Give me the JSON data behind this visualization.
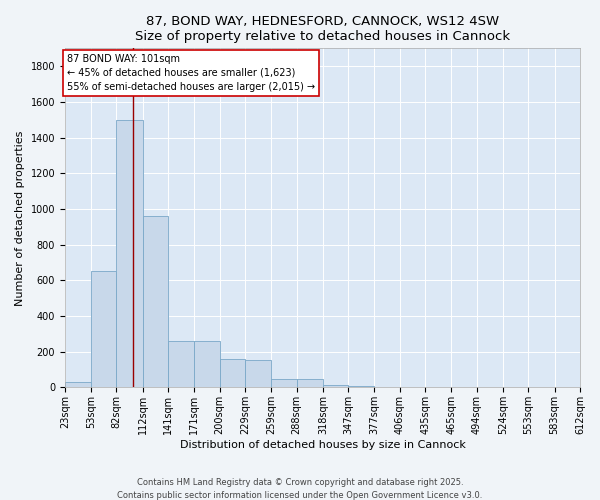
{
  "title_line1": "87, BOND WAY, HEDNESFORD, CANNOCK, WS12 4SW",
  "title_line2": "Size of property relative to detached houses in Cannock",
  "xlabel": "Distribution of detached houses by size in Cannock",
  "ylabel": "Number of detached properties",
  "bins": [
    23,
    53,
    82,
    112,
    141,
    171,
    200,
    229,
    259,
    288,
    318,
    347,
    377,
    406,
    435,
    465,
    494,
    524,
    553,
    583,
    612
  ],
  "bin_labels": [
    "23sqm",
    "53sqm",
    "82sqm",
    "112sqm",
    "141sqm",
    "171sqm",
    "200sqm",
    "229sqm",
    "259sqm",
    "288sqm",
    "318sqm",
    "347sqm",
    "377sqm",
    "406sqm",
    "435sqm",
    "465sqm",
    "494sqm",
    "524sqm",
    "553sqm",
    "583sqm",
    "612sqm"
  ],
  "counts": [
    30,
    650,
    1500,
    960,
    260,
    260,
    160,
    155,
    50,
    50,
    15,
    10,
    5,
    5,
    5,
    5,
    5,
    5,
    5,
    5
  ],
  "bar_color": "#c8d8ea",
  "bar_edge_color": "#7aa8c8",
  "background_color": "#dce8f5",
  "fig_background_color": "#f0f4f8",
  "vertical_line_x": 101,
  "vertical_line_color": "#990000",
  "annotation_box_edge_color": "#cc0000",
  "annotation_line1": "87 BOND WAY: 101sqm",
  "annotation_line2": "← 45% of detached houses are smaller (1,623)",
  "annotation_line3": "55% of semi-detached houses are larger (2,015) →",
  "ylim": [
    0,
    1900
  ],
  "yticks": [
    0,
    200,
    400,
    600,
    800,
    1000,
    1200,
    1400,
    1600,
    1800
  ],
  "footer_line1": "Contains HM Land Registry data © Crown copyright and database right 2025.",
  "footer_line2": "Contains public sector information licensed under the Open Government Licence v3.0.",
  "title_fontsize": 9.5,
  "axis_label_fontsize": 8,
  "tick_fontsize": 7,
  "annotation_fontsize": 7,
  "footer_fontsize": 6
}
